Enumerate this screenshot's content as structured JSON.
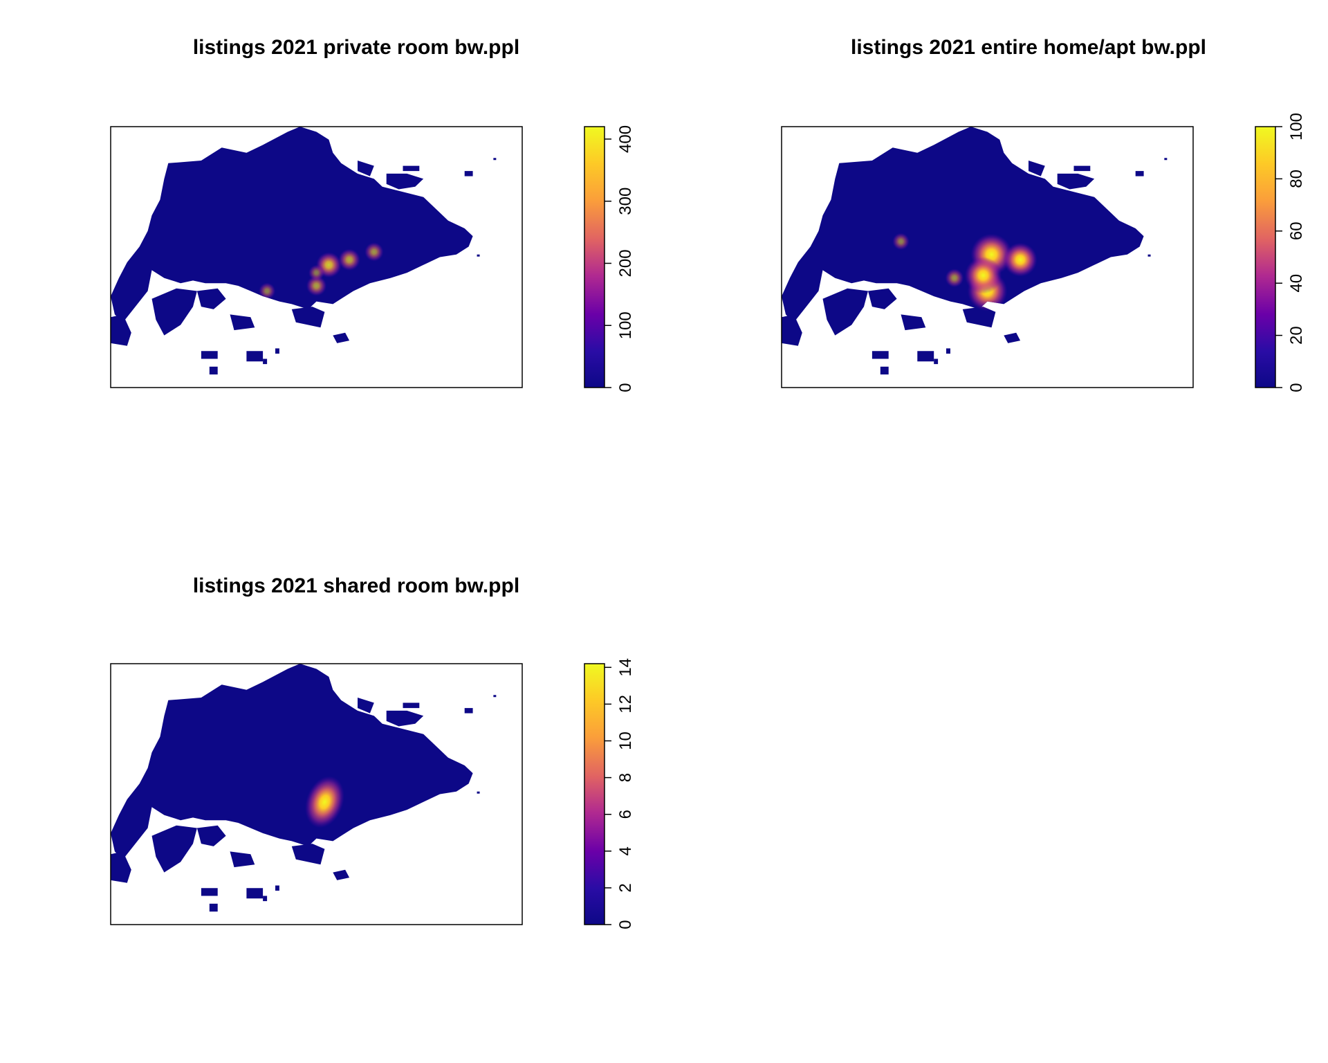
{
  "chart_data": [
    {
      "type": "heatmap",
      "title": "listings 2021 private room bw.ppl",
      "colorbar": {
        "min": 0,
        "max": 420,
        "ticks": [
          0,
          100,
          200,
          300,
          400
        ],
        "palette": [
          "#0D0887",
          "#3A00B0",
          "#7A01A8",
          "#B8277F",
          "#E64C5C",
          "#F98A3A",
          "#FDC52A",
          "#F0F921"
        ]
      },
      "hotspots": [
        {
          "x": 0.53,
          "y": 0.53,
          "value": 200
        },
        {
          "x": 0.58,
          "y": 0.51,
          "value": 150
        },
        {
          "x": 0.5,
          "y": 0.61,
          "value": 130
        },
        {
          "x": 0.64,
          "y": 0.48,
          "value": 110
        },
        {
          "x": 0.38,
          "y": 0.63,
          "value": 80
        },
        {
          "x": 0.5,
          "y": 0.56,
          "value": 70
        }
      ]
    },
    {
      "type": "heatmap",
      "title": "listings 2021 entire home/apt  bw.ppl",
      "colorbar": {
        "min": 0,
        "max": 100,
        "ticks": [
          0,
          20,
          40,
          60,
          80,
          100
        ],
        "palette": [
          "#0D0887",
          "#3A00B0",
          "#7A01A8",
          "#B8277F",
          "#E64C5C",
          "#F98A3A",
          "#FDC52A",
          "#F0F921"
        ]
      },
      "hotspots": [
        {
          "x": 0.51,
          "y": 0.49,
          "value": 100
        },
        {
          "x": 0.5,
          "y": 0.63,
          "value": 95
        },
        {
          "x": 0.49,
          "y": 0.57,
          "value": 85
        },
        {
          "x": 0.58,
          "y": 0.51,
          "value": 75
        },
        {
          "x": 0.42,
          "y": 0.58,
          "value": 25
        },
        {
          "x": 0.29,
          "y": 0.44,
          "value": 20
        }
      ]
    },
    {
      "type": "heatmap",
      "title": "listings 2021 shared room bw.ppl",
      "colorbar": {
        "min": 0,
        "max": 14.2,
        "ticks": [
          0,
          2,
          4,
          6,
          8,
          10,
          12,
          14
        ],
        "palette": [
          "#0D0887",
          "#3A00B0",
          "#7A01A8",
          "#B8277F",
          "#E64C5C",
          "#F98A3A",
          "#FDC52A",
          "#F0F921"
        ]
      },
      "hotspots": [
        {
          "x": 0.52,
          "y": 0.53,
          "value": 14
        }
      ]
    }
  ]
}
